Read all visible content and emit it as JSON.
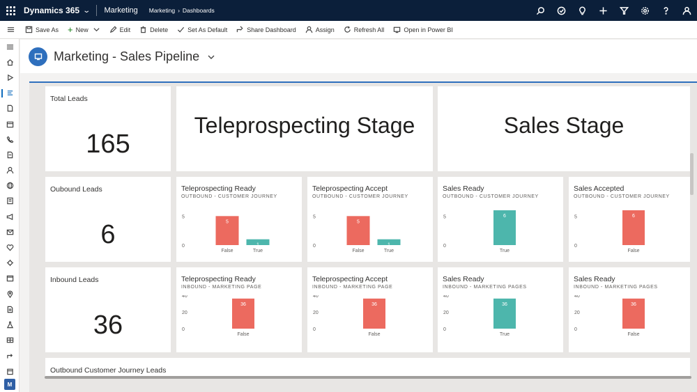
{
  "topbar": {
    "brand": "Dynamics 365",
    "app": "Marketing",
    "breadcrumb": [
      "Marketing",
      "Dashboards"
    ],
    "icons": [
      "search-icon",
      "task-icon",
      "lightbulb-icon",
      "plus-icon",
      "filter-icon",
      "settings-icon",
      "help-icon",
      "person-icon"
    ]
  },
  "commands": {
    "save_as": "Save As",
    "new": "New",
    "edit": "Edit",
    "delete": "Delete",
    "set_default": "Set As Default",
    "share": "Share Dashboard",
    "assign": "Assign",
    "refresh": "Refresh All",
    "power_bi": "Open in Power BI"
  },
  "rail": {
    "avatar": "M"
  },
  "header": {
    "title": "Marketing - Sales Pipeline"
  },
  "tiles": {
    "total_leads": {
      "label": "Total Leads",
      "value": "165"
    },
    "outbound_leads": {
      "label": "Oubound Leads",
      "value": "6"
    },
    "inbound_leads": {
      "label": "Inbound Leads",
      "value": "36"
    },
    "teleprospecting_stage": "Teleprospecting Stage",
    "sales_stage": "Sales Stage",
    "outbound_cj": "Outbound Customer Journey Leads"
  },
  "colors": {
    "red": "#ec6a5f",
    "teal": "#4db6ac",
    "accent": "#2e6fbd",
    "topbar": "#0b1f3a"
  },
  "chart_data": [
    {
      "type": "bar",
      "title": "Teleprospecting Ready",
      "subtitle": "OUTBOUND - CUSTOMER JOURNEY",
      "categories": [
        "False",
        "True"
      ],
      "values": [
        5,
        1
      ],
      "colors": [
        "red",
        "teal"
      ],
      "yticks": [
        0,
        5
      ],
      "ylim": [
        0,
        6
      ]
    },
    {
      "type": "bar",
      "title": "Teleprospecting Accept",
      "subtitle": "OUTBOUND - CUSTOMER JOURNEY",
      "categories": [
        "False",
        "True"
      ],
      "values": [
        5,
        1
      ],
      "colors": [
        "red",
        "teal"
      ],
      "yticks": [
        0,
        5
      ],
      "ylim": [
        0,
        6
      ]
    },
    {
      "type": "bar",
      "title": "Sales Ready",
      "subtitle": "OUTBOUND - CUSTOMER JOURNEY",
      "categories": [
        "True"
      ],
      "values": [
        6
      ],
      "colors": [
        "teal"
      ],
      "yticks": [
        0,
        5
      ],
      "ylim": [
        0,
        6
      ]
    },
    {
      "type": "bar",
      "title": "Sales Accepted",
      "subtitle": "OUTBOUND - CUSTOMER JOURNEY",
      "categories": [
        "False"
      ],
      "values": [
        6
      ],
      "colors": [
        "red"
      ],
      "yticks": [
        0,
        5
      ],
      "ylim": [
        0,
        6
      ]
    },
    {
      "type": "bar",
      "title": "Teleprospecting Ready",
      "subtitle": "INBOUND - MARKETING PAGE",
      "categories": [
        "False"
      ],
      "values": [
        36
      ],
      "colors": [
        "red"
      ],
      "yticks": [
        0,
        20,
        40
      ],
      "ylim": [
        0,
        40
      ]
    },
    {
      "type": "bar",
      "title": "Teleprospecting Accept",
      "subtitle": "INBOUND - MARKETING PAGE",
      "categories": [
        "False"
      ],
      "values": [
        36
      ],
      "colors": [
        "red"
      ],
      "yticks": [
        0,
        20,
        40
      ],
      "ylim": [
        0,
        40
      ]
    },
    {
      "type": "bar",
      "title": "Sales Ready",
      "subtitle": "INBOUND - MARKETING PAGES",
      "categories": [
        "True"
      ],
      "values": [
        36
      ],
      "colors": [
        "teal"
      ],
      "yticks": [
        0,
        20,
        40
      ],
      "ylim": [
        0,
        40
      ]
    },
    {
      "type": "bar",
      "title": "Sales Ready",
      "subtitle": "INBOUND - MARKETING PAGES",
      "categories": [
        "False"
      ],
      "values": [
        36
      ],
      "colors": [
        "red"
      ],
      "yticks": [
        0,
        20,
        40
      ],
      "ylim": [
        0,
        40
      ]
    }
  ]
}
